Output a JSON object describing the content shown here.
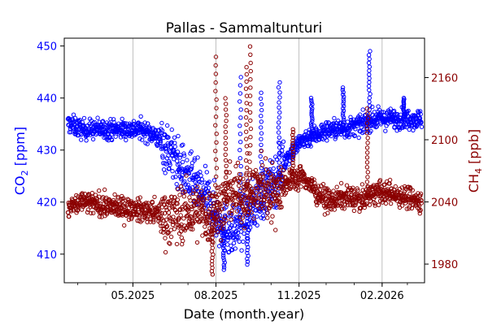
{
  "chart_data": {
    "type": "scatter",
    "title": "Pallas - Sammaltunturi",
    "xlabel": "Date (month.year)",
    "ylabel_left": {
      "main": "CO",
      "sub": "2",
      "unit": " [ppm]"
    },
    "ylabel_right": {
      "main": "CH",
      "sub": "4",
      "unit": " [ppb]"
    },
    "x_range": [
      "2025-02-14",
      "2026-03-20"
    ],
    "xtick_labels": [
      "05.2025",
      "08.2025",
      "11.2025",
      "02.2026"
    ],
    "xtick_dates": [
      "2025-05-01",
      "2025-08-01",
      "2025-11-01",
      "2026-02-01"
    ],
    "grid": "vertical at x ticks",
    "left_axis": {
      "ylim": [
        404.5,
        451.5
      ],
      "ticks": [
        410,
        420,
        430,
        440,
        450
      ],
      "color": "#0000ff"
    },
    "right_axis": {
      "ylim": [
        1962,
        2198
      ],
      "ticks": [
        1980,
        2040,
        2100,
        2160
      ],
      "color": "#8b0000"
    },
    "series": [
      {
        "name": "CO2",
        "axis": "left",
        "color": "#0000ff",
        "marker": "open-circle",
        "trend": [
          [
            "2025-02-20",
            435
          ],
          [
            "2025-03-05",
            434
          ],
          [
            "2025-04-01",
            434
          ],
          [
            "2025-04-20",
            434
          ],
          [
            "2025-05-10",
            434
          ],
          [
            "2025-05-25",
            433
          ],
          [
            "2025-06-10",
            430
          ],
          [
            "2025-06-25",
            426
          ],
          [
            "2025-07-10",
            423
          ],
          [
            "2025-07-25",
            420
          ],
          [
            "2025-08-05",
            416
          ],
          [
            "2025-08-20",
            414
          ],
          [
            "2025-09-05",
            418
          ],
          [
            "2025-09-20",
            421
          ],
          [
            "2025-10-05",
            424
          ],
          [
            "2025-10-20",
            429
          ],
          [
            "2025-11-05",
            432
          ],
          [
            "2025-11-20",
            433
          ],
          [
            "2025-12-05",
            434
          ],
          [
            "2025-12-20",
            434
          ],
          [
            "2026-01-10",
            435
          ],
          [
            "2026-01-25",
            436
          ],
          [
            "2026-02-10",
            436
          ],
          [
            "2026-03-01",
            436
          ],
          [
            "2026-03-15",
            436
          ]
        ],
        "spikes": [
          [
            "2025-08-28",
            444
          ],
          [
            "2025-09-20",
            441
          ],
          [
            "2025-10-10",
            443
          ],
          [
            "2025-11-15",
            440
          ],
          [
            "2025-12-20",
            442
          ],
          [
            "2026-01-18",
            449
          ],
          [
            "2026-02-25",
            440
          ],
          [
            "2025-08-10",
            407
          ],
          [
            "2025-09-05",
            408
          ]
        ]
      },
      {
        "name": "CH4",
        "axis": "right",
        "color": "#8b0000",
        "marker": "open-circle",
        "trend": [
          [
            "2025-02-20",
            2035
          ],
          [
            "2025-03-05",
            2040
          ],
          [
            "2025-04-01",
            2036
          ],
          [
            "2025-04-20",
            2034
          ],
          [
            "2025-05-10",
            2032
          ],
          [
            "2025-05-25",
            2030
          ],
          [
            "2025-06-10",
            2026
          ],
          [
            "2025-06-25",
            2028
          ],
          [
            "2025-07-10",
            2030
          ],
          [
            "2025-07-25",
            2025
          ],
          [
            "2025-08-05",
            2035
          ],
          [
            "2025-08-20",
            2050
          ],
          [
            "2025-09-05",
            2045
          ],
          [
            "2025-09-20",
            2055
          ],
          [
            "2025-10-05",
            2050
          ],
          [
            "2025-10-20",
            2060
          ],
          [
            "2025-11-05",
            2065
          ],
          [
            "2025-11-20",
            2050
          ],
          [
            "2025-12-05",
            2040
          ],
          [
            "2025-12-20",
            2045
          ],
          [
            "2026-01-10",
            2042
          ],
          [
            "2026-01-25",
            2050
          ],
          [
            "2026-02-10",
            2048
          ],
          [
            "2026-03-01",
            2045
          ],
          [
            "2026-03-15",
            2040
          ]
        ],
        "spikes": [
          [
            "2025-07-28",
            1970
          ],
          [
            "2025-08-01",
            2180
          ],
          [
            "2025-08-12",
            2140
          ],
          [
            "2025-09-08",
            2190
          ],
          [
            "2025-09-04",
            2170
          ],
          [
            "2025-10-25",
            2110
          ],
          [
            "2026-01-16",
            2130
          ]
        ]
      }
    ]
  }
}
